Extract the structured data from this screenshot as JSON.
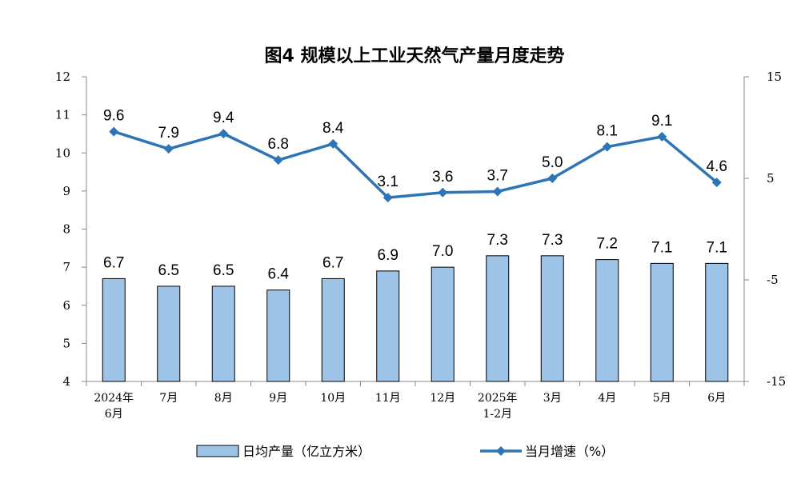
{
  "chart_data": {
    "type": "bar",
    "title": "图4  规模以上工业天然气产量月度走势",
    "categories": [
      [
        "2024年",
        "6月"
      ],
      [
        "7月"
      ],
      [
        "8月"
      ],
      [
        "9月"
      ],
      [
        "10月"
      ],
      [
        "11月"
      ],
      [
        "12月"
      ],
      [
        "2025年",
        "1-2月"
      ],
      [
        "3月"
      ],
      [
        "4月"
      ],
      [
        "5月"
      ],
      [
        "6月"
      ]
    ],
    "series": [
      {
        "name": "日均产量（亿立方米）",
        "type": "bar",
        "axis": "left",
        "color": "#9DC3E6",
        "values": [
          6.7,
          6.5,
          6.5,
          6.4,
          6.7,
          6.9,
          7.0,
          7.3,
          7.3,
          7.2,
          7.1,
          7.1
        ],
        "labels": [
          "6.7",
          "6.5",
          "6.5",
          "6.4",
          "6.7",
          "6.9",
          "7.0",
          "7.3",
          "7.3",
          "7.2",
          "7.1",
          "7.1"
        ]
      },
      {
        "name": "当月增速（%）",
        "type": "line",
        "axis": "right",
        "color": "#2E75B6",
        "marker": "diamond",
        "values": [
          9.6,
          7.9,
          9.4,
          6.8,
          8.4,
          3.1,
          3.6,
          3.7,
          5.0,
          8.1,
          9.1,
          4.6
        ],
        "labels": [
          "9.6",
          "7.9",
          "9.4",
          "6.8",
          "8.4",
          "3.1",
          "3.6",
          "3.7",
          "5.0",
          "8.1",
          "9.1",
          "4.6"
        ]
      }
    ],
    "y_left": {
      "ylim": [
        4,
        12
      ],
      "ticks": [
        "4",
        "5",
        "6",
        "7",
        "8",
        "9",
        "10",
        "11",
        "12"
      ]
    },
    "y_right": {
      "ylim": [
        -15,
        15
      ],
      "ticks": [
        "-15",
        "-5",
        "5",
        "15"
      ]
    },
    "grid": false,
    "legend": {
      "position": "bottom"
    }
  }
}
